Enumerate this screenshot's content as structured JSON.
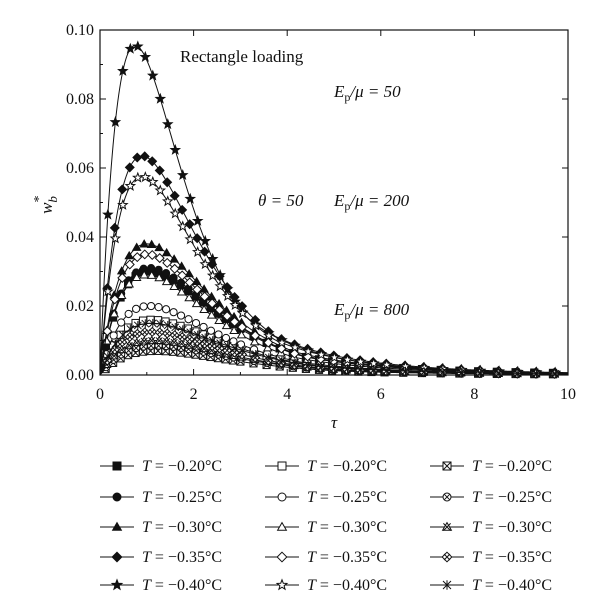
{
  "chart_data": {
    "type": "line",
    "title": "",
    "xlabel": "τ",
    "ylabel_base": "w",
    "ylabel_sup": "*",
    "ylabel_sub": "b",
    "xlim": [
      0,
      10
    ],
    "ylim": [
      0,
      0.1
    ],
    "x_ticks": [
      "0",
      "2",
      "4",
      "6",
      "8",
      "10"
    ],
    "y_ticks": [
      "0.00",
      "0.02",
      "0.04",
      "0.06",
      "0.08",
      "0.10"
    ],
    "annotations": {
      "loading": "Rectangle loading",
      "ratio_50_left": "E",
      "ratio_50_sub": "p",
      "ratio_50_right": "/μ = 50",
      "theta": "θ = 50",
      "ratio_200_left": "E",
      "ratio_200_sub": "p",
      "ratio_200_right": "/μ = 200",
      "ratio_800_left": "E",
      "ratio_800_sub": "p",
      "ratio_800_right": "/μ = 800"
    },
    "legend_placement": "bottom",
    "series": [
      {
        "name": "T = −0.20°C",
        "group": "Ep/μ = 50",
        "marker": "square",
        "filled": true,
        "peak_x": 1.05,
        "peak_y": 0.03
      },
      {
        "name": "T = −0.25°C",
        "group": "Ep/μ = 50",
        "marker": "circle",
        "filled": true,
        "peak_x": 1.05,
        "peak_y": 0.031
      },
      {
        "name": "T = −0.30°C",
        "group": "Ep/μ = 50",
        "marker": "triangle",
        "filled": true,
        "peak_x": 1.0,
        "peak_y": 0.038
      },
      {
        "name": "T = −0.35°C",
        "group": "Ep/μ = 50",
        "marker": "diamond",
        "filled": true,
        "peak_x": 0.9,
        "peak_y": 0.0635
      },
      {
        "name": "T = −0.40°C",
        "group": "Ep/μ = 50",
        "marker": "star",
        "filled": true,
        "peak_x": 0.75,
        "peak_y": 0.0955
      },
      {
        "name": "T = −0.20°C",
        "group": "Ep/μ = 200",
        "marker": "square",
        "filled": false,
        "peak_x": 1.1,
        "peak_y": 0.016
      },
      {
        "name": "T = −0.25°C",
        "group": "Ep/μ = 200",
        "marker": "circle",
        "filled": false,
        "peak_x": 1.05,
        "peak_y": 0.02
      },
      {
        "name": "T = −0.30°C",
        "group": "Ep/μ = 200",
        "marker": "triangle",
        "filled": false,
        "peak_x": 1.0,
        "peak_y": 0.029
      },
      {
        "name": "T = −0.35°C",
        "group": "Ep/μ = 200",
        "marker": "diamond",
        "filled": false,
        "peak_x": 1.0,
        "peak_y": 0.035
      },
      {
        "name": "T = −0.40°C",
        "group": "Ep/μ = 200",
        "marker": "star",
        "filled": false,
        "peak_x": 0.9,
        "peak_y": 0.0575
      },
      {
        "name": "T = −0.20°C",
        "group": "Ep/μ = 800",
        "marker": "square-x",
        "filled": false,
        "peak_x": 1.2,
        "peak_y": 0.007
      },
      {
        "name": "T = −0.25°C",
        "group": "Ep/μ = 800",
        "marker": "circle-x",
        "filled": false,
        "peak_x": 1.2,
        "peak_y": 0.0085
      },
      {
        "name": "T = −0.30°C",
        "group": "Ep/μ = 800",
        "marker": "triangle-x",
        "filled": false,
        "peak_x": 1.15,
        "peak_y": 0.01
      },
      {
        "name": "T = −0.35°C",
        "group": "Ep/μ = 800",
        "marker": "diamond-x",
        "filled": false,
        "peak_x": 1.1,
        "peak_y": 0.0125
      },
      {
        "name": "T = −0.40°C",
        "group": "Ep/μ = 800",
        "marker": "asterisk",
        "filled": false,
        "peak_x": 1.1,
        "peak_y": 0.015
      }
    ]
  }
}
